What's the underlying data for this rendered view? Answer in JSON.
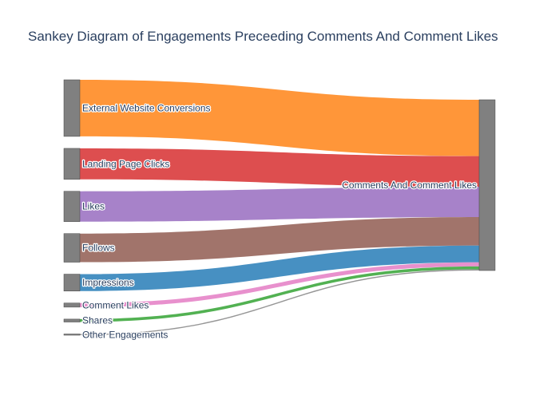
{
  "chart_data": {
    "type": "sankey",
    "title": "Sankey Diagram of Engagements Preceeding Comments And Comment Likes",
    "target": {
      "label": "Comments And Comment Likes",
      "color": "#808080"
    },
    "node_color": "#808080",
    "links": [
      {
        "source": "External Website Conversions",
        "value": 97,
        "color": "#ff7f0e"
      },
      {
        "source": "Landing Page Clicks",
        "value": 53,
        "color": "#d62728"
      },
      {
        "source": "Likes",
        "value": 52,
        "color": "#9467bd"
      },
      {
        "source": "Follows",
        "value": 49,
        "color": "#8c564b"
      },
      {
        "source": "Impressions",
        "value": 29,
        "color": "#1f77b4"
      },
      {
        "source": "Comment Likes",
        "value": 7,
        "color": "#e377c2"
      },
      {
        "source": "Shares",
        "value": 5,
        "color": "#2ca02c"
      },
      {
        "source": "Other Engagements",
        "value": 2,
        "color": "#7f7f7f"
      }
    ]
  }
}
